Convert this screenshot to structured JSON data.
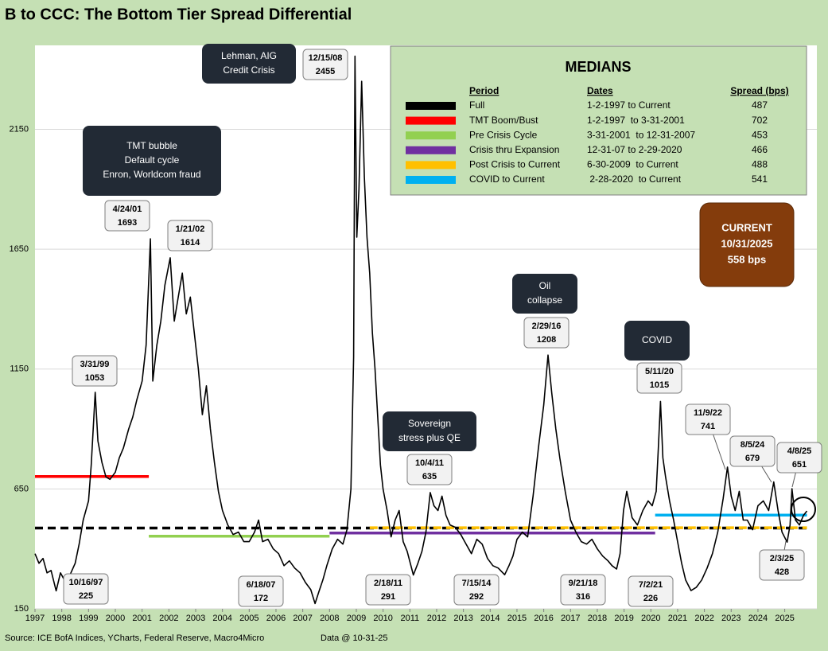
{
  "chart_data": {
    "type": "line",
    "title": "B to CCC: The Bottom Tier Spread Differential",
    "source": "Source: ICE BofA Indices, YCharts, Federal Reserve, Macro4Micro",
    "data_note": "Data @ 10-31-25",
    "xlim": [
      1997,
      2026.2
    ],
    "xticks": [
      1997,
      1998,
      1999,
      2000,
      2001,
      2002,
      2003,
      2004,
      2005,
      2006,
      2007,
      2008,
      2009,
      2010,
      2011,
      2012,
      2013,
      2014,
      2015,
      2016,
      2017,
      2018,
      2019,
      2020,
      2021,
      2022,
      2023,
      2024,
      2025
    ],
    "ylim": [
      150,
      2500
    ],
    "yticks": [
      150,
      650,
      1150,
      1650,
      2150
    ],
    "grid": true,
    "series": [
      {
        "color": "#000000",
        "x": [
          1997.0,
          1997.15,
          1997.3,
          1997.45,
          1997.6,
          1997.79,
          1997.95,
          1998.1,
          1998.3,
          1998.5,
          1998.65,
          1998.8,
          1999.0,
          1999.1,
          1999.25,
          1999.35,
          1999.5,
          1999.65,
          1999.8,
          2000.0,
          2000.15,
          2000.3,
          2000.5,
          2000.65,
          2000.8,
          2001.0,
          2001.15,
          2001.31,
          2001.4,
          2001.55,
          2001.7,
          2001.85,
          2002.05,
          2002.2,
          2002.35,
          2002.5,
          2002.65,
          2002.8,
          2002.95,
          2003.1,
          2003.25,
          2003.4,
          2003.55,
          2003.7,
          2003.85,
          2004.0,
          2004.2,
          2004.4,
          2004.6,
          2004.8,
          2005.0,
          2005.2,
          2005.35,
          2005.5,
          2005.7,
          2005.9,
          2006.1,
          2006.3,
          2006.5,
          2006.7,
          2006.9,
          2007.1,
          2007.3,
          2007.46,
          2007.6,
          2007.75,
          2007.9,
          2008.1,
          2008.3,
          2008.5,
          2008.65,
          2008.8,
          2008.9,
          2008.95,
          2009.02,
          2009.1,
          2009.2,
          2009.3,
          2009.4,
          2009.5,
          2009.6,
          2009.7,
          2009.8,
          2009.9,
          2010.0,
          2010.15,
          2010.3,
          2010.45,
          2010.6,
          2010.75,
          2010.9,
          2011.13,
          2011.3,
          2011.45,
          2011.6,
          2011.76,
          2011.9,
          2012.05,
          2012.2,
          2012.35,
          2012.5,
          2012.7,
          2012.9,
          2013.1,
          2013.3,
          2013.5,
          2013.7,
          2013.9,
          2014.1,
          2014.3,
          2014.54,
          2014.7,
          2014.85,
          2015.0,
          2015.2,
          2015.4,
          2015.6,
          2015.8,
          2016.0,
          2016.16,
          2016.3,
          2016.45,
          2016.6,
          2016.8,
          2017.0,
          2017.2,
          2017.4,
          2017.6,
          2017.8,
          2018.0,
          2018.2,
          2018.4,
          2018.55,
          2018.72,
          2018.85,
          2018.98,
          2019.1,
          2019.3,
          2019.5,
          2019.7,
          2019.9,
          2020.05,
          2020.2,
          2020.28,
          2020.36,
          2020.45,
          2020.55,
          2020.7,
          2020.85,
          2021.0,
          2021.15,
          2021.3,
          2021.5,
          2021.7,
          2021.9,
          2022.1,
          2022.3,
          2022.5,
          2022.7,
          2022.86,
          2023.0,
          2023.15,
          2023.3,
          2023.45,
          2023.6,
          2023.8,
          2024.0,
          2024.2,
          2024.4,
          2024.59,
          2024.75,
          2024.9,
          2025.09,
          2025.2,
          2025.27,
          2025.4,
          2025.55,
          2025.7,
          2025.83
        ],
        "values": [
          380,
          340,
          360,
          300,
          310,
          225,
          300,
          270,
          290,
          340,
          420,
          520,
          600,
          750,
          1053,
          850,
          760,
          700,
          690,
          720,
          780,
          820,
          900,
          950,
          1020,
          1100,
          1250,
          1693,
          1100,
          1250,
          1350,
          1500,
          1614,
          1350,
          1450,
          1550,
          1380,
          1450,
          1300,
          1150,
          960,
          1080,
          900,
          760,
          640,
          560,
          500,
          460,
          470,
          430,
          430,
          470,
          520,
          430,
          440,
          400,
          380,
          330,
          350,
          320,
          300,
          260,
          230,
          172,
          220,
          270,
          330,
          400,
          440,
          420,
          480,
          650,
          1200,
          2455,
          1700,
          1900,
          2350,
          1950,
          1700,
          1550,
          1300,
          1150,
          950,
          750,
          650,
          560,
          450,
          520,
          560,
          430,
          390,
          291,
          340,
          390,
          470,
          635,
          580,
          560,
          620,
          540,
          500,
          490,
          460,
          420,
          380,
          440,
          420,
          360,
          330,
          320,
          292,
          330,
          370,
          440,
          470,
          450,
          620,
          820,
          1000,
          1208,
          1050,
          900,
          780,
          640,
          520,
          470,
          430,
          420,
          440,
          400,
          370,
          350,
          330,
          316,
          380,
          560,
          640,
          530,
          500,
          560,
          600,
          580,
          640,
          820,
          1015,
          780,
          700,
          600,
          520,
          430,
          340,
          270,
          226,
          240,
          270,
          320,
          380,
          470,
          610,
          741,
          620,
          560,
          640,
          520,
          520,
          480,
          580,
          600,
          560,
          679,
          560,
          470,
          428,
          500,
          651,
          520,
          500,
          540,
          558
        ]
      }
    ],
    "medians_title": "MEDIANS",
    "medians_headers": [
      "Period",
      "Dates",
      "Spread (bps)"
    ],
    "medians": [
      {
        "period": "Full",
        "dates": "1-2-1997 to Current",
        "spread": 487,
        "color": "#000000",
        "dashed": true,
        "x": [
          1997.0,
          2025.83
        ]
      },
      {
        "period": "TMT Boom/Bust",
        "dates": "1-2-1997  to 3-31-2001",
        "spread": 702,
        "color": "#ff0000",
        "dashed": false,
        "x": [
          1997.0,
          2001.25
        ]
      },
      {
        "period": "Pre Crisis Cycle",
        "dates": "3-31-2001  to 12-31-2007",
        "spread": 453,
        "color": "#92d050",
        "dashed": false,
        "x": [
          2001.25,
          2008.0
        ]
      },
      {
        "period": "Crisis thru Expansion",
        "dates": "12-31-07 to 2-29-2020",
        "spread": 466,
        "color": "#7030a0",
        "dashed": false,
        "x": [
          2008.0,
          2020.16
        ]
      },
      {
        "period": "Post Crisis to Current",
        "dates": "6-30-2009  to Current",
        "spread": 488,
        "color": "#ffc000",
        "dashed": true,
        "x": [
          2009.5,
          2025.83
        ]
      },
      {
        "period": "COVID to Current",
        "dates": " 2-28-2020  to Current",
        "spread": 541,
        "color": "#00b0f0",
        "dashed": false,
        "x": [
          2020.16,
          2025.83
        ]
      }
    ],
    "callouts": [
      {
        "date": "10/16/97",
        "value": 225
      },
      {
        "date": "3/31/99",
        "value": 1053
      },
      {
        "date": "4/24/01",
        "value": 1693
      },
      {
        "date": "1/21/02",
        "value": 1614
      },
      {
        "date": "6/18/07",
        "value": 172
      },
      {
        "date": "12/15/08",
        "value": 2455
      },
      {
        "date": "2/18/11",
        "value": 291
      },
      {
        "date": "10/4/11",
        "value": 635
      },
      {
        "date": "7/15/14",
        "value": 292
      },
      {
        "date": "2/29/16",
        "value": 1208
      },
      {
        "date": "9/21/18",
        "value": 316
      },
      {
        "date": "5/11/20",
        "value": 1015
      },
      {
        "date": "7/2/21",
        "value": 226
      },
      {
        "date": "11/9/22",
        "value": 741
      },
      {
        "date": "8/5/24",
        "value": 679
      },
      {
        "date": "2/3/25",
        "value": 428
      },
      {
        "date": "4/8/25",
        "value": 651
      }
    ],
    "notes": [
      {
        "lines": [
          "Lehman, AIG",
          "Credit Crisis"
        ]
      },
      {
        "lines": [
          "TMT bubble",
          "Default cycle",
          "Enron, Worldcom fraud"
        ]
      },
      {
        "lines": [
          "Sovereign",
          "stress plus QE"
        ]
      },
      {
        "lines": [
          "Oil",
          "collapse"
        ]
      },
      {
        "lines": [
          "COVID"
        ]
      }
    ],
    "current": {
      "lines": [
        "CURRENT",
        "10/31/2025",
        "558 bps"
      ],
      "color": "#843c0c"
    }
  }
}
